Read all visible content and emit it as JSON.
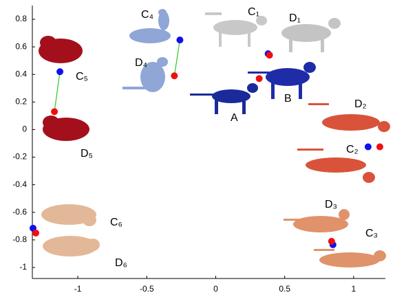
{
  "chart_data": {
    "type": "scatter",
    "xlim": [
      -1.33,
      1.3
    ],
    "ylim": [
      -1.08,
      0.9
    ],
    "xticks": [
      -1,
      -0.5,
      0,
      0.5,
      1
    ],
    "yticks": [
      -1,
      -0.8,
      -0.6,
      -0.4,
      -0.2,
      0,
      0.2,
      0.4,
      0.6,
      0.8
    ],
    "grid": false,
    "series": [
      {
        "color": "#1010ee",
        "x": [
          -1.13,
          -0.26,
          0.38,
          1.105,
          0.85,
          -1.325
        ],
        "values": [
          0.42,
          0.65,
          0.55,
          -0.125,
          -0.835,
          -0.715
        ]
      },
      {
        "color": "#ee1010",
        "x": [
          -1.17,
          -0.3,
          0.39,
          1.19,
          0.84,
          -1.305,
          0.315
        ],
        "values": [
          0.13,
          0.39,
          0.54,
          -0.125,
          -0.81,
          -0.75,
          0.37
        ]
      }
    ],
    "links": {
      "color": "#22cc22",
      "pairs": [
        [
          0,
          0
        ],
        [
          1,
          1
        ]
      ]
    },
    "annotations": [
      "C₄",
      "C₁",
      "D₁",
      "D₄",
      "C₅",
      "A",
      "B",
      "D₂",
      "C₂",
      "D₅",
      "D₃",
      "C₃",
      "C₆",
      "D₆"
    ]
  }
}
